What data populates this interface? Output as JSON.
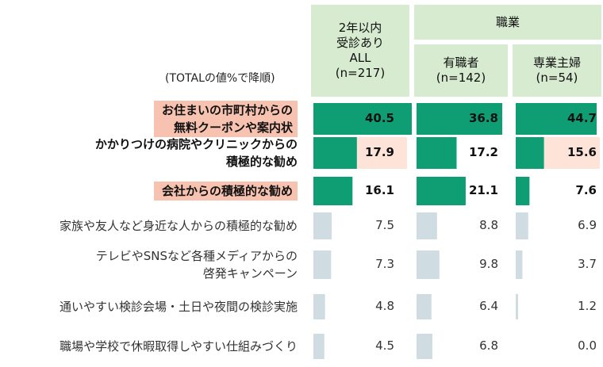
{
  "note": "(TOTALの値%で降順)",
  "headers": {
    "all": [
      "2年以内",
      "受診あり",
      "ALL",
      "(n=217)"
    ],
    "group": "職業",
    "employed": [
      "有職者",
      "(n=142)"
    ],
    "housewife": [
      "専業主婦",
      "(n=54)"
    ]
  },
  "colors": {
    "highlight_bar": "#0f9e74",
    "plain_bar": "#cfdde2",
    "header_bg": "#d6ebd0",
    "highlight_bg": "#f7c3b0",
    "cell_bg": "#fde3d8"
  },
  "chart_data": {
    "type": "bar",
    "orientation": "horizontal",
    "categories": [
      [
        "お住まいの市町村からの",
        "無料クーポンや案内状"
      ],
      [
        "かかりつけの病院やクリニックからの",
        "積極的な勧め"
      ],
      [
        "会社からの積極的な勧め"
      ],
      [
        "家族や友人など身近な人からの積極的な勧め"
      ],
      [
        "テレビやSNSなど各種メディアからの",
        "啓発キャンペーン"
      ],
      [
        "通いやすい検診会場・土日や夜間の検診実施"
      ],
      [
        "職場や学校で休暇取得しやすい仕組みづくり"
      ]
    ],
    "series": [
      {
        "name": "ALL",
        "values": [
          40.5,
          17.9,
          16.1,
          7.5,
          7.3,
          4.8,
          4.5
        ],
        "labels": [
          "40.5",
          "17.9",
          "16.1",
          "7.5",
          "7.3",
          "4.8",
          "4.5"
        ]
      },
      {
        "name": "有職者",
        "values": [
          36.8,
          17.2,
          21.1,
          8.8,
          9.8,
          6.4,
          6.8
        ],
        "labels": [
          "36.8",
          "17.2",
          "21.1",
          "8.8",
          "9.8",
          "6.4",
          "6.8"
        ]
      },
      {
        "name": "専業主婦",
        "values": [
          44.7,
          15.6,
          7.6,
          6.9,
          3.7,
          1.2,
          0.0
        ],
        "labels": [
          "44.7",
          "15.6",
          "7.6",
          "6.9",
          "3.7",
          "1.2",
          "0.0"
        ]
      }
    ],
    "highlighted_rows": [
      0,
      1,
      2
    ],
    "highlight_background_rows": [
      0,
      2
    ],
    "highlighted_cells": [
      [
        0,
        0
      ],
      [
        1,
        0
      ],
      [
        1,
        2
      ]
    ]
  }
}
